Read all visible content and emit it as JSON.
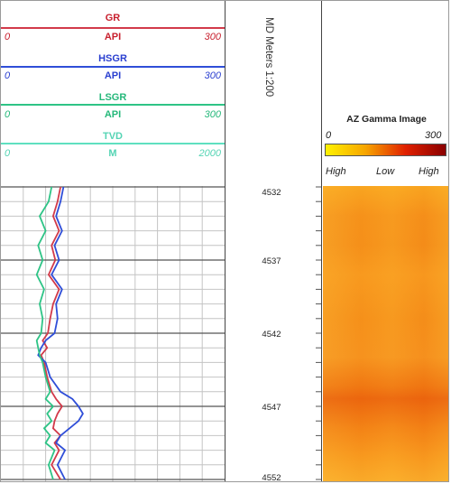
{
  "header": {
    "curves": [
      {
        "name": "GR",
        "unit": "API",
        "min": "0",
        "max": "300",
        "color": "#d23a4a",
        "text_color": "#c8202e"
      },
      {
        "name": "HSGR",
        "unit": "API",
        "min": "0",
        "max": "300",
        "color": "#2f4ed8",
        "text_color": "#2a3fd0"
      },
      {
        "name": "LSGR",
        "unit": "API",
        "min": "0",
        "max": "300",
        "color": "#2ec486",
        "text_color": "#25b87a"
      },
      {
        "name": "TVD",
        "unit": "M",
        "min": "0",
        "max": "2000",
        "color": "#5fe0c0",
        "text_color": "#55d4b4"
      }
    ]
  },
  "depth_track": {
    "title": "MD Meters 1:200"
  },
  "image_track": {
    "title": "AZ Gamma Image",
    "scale_min": "0",
    "scale_max": "300",
    "labels": {
      "left": "High",
      "center": "Low",
      "right": "High"
    }
  },
  "chart_data": {
    "type": "line",
    "y_axis": {
      "label": "MD Meters 1:200",
      "range": [
        4532,
        4552
      ],
      "ticks": [
        4532,
        4537,
        4542,
        4547,
        4552
      ],
      "tick_labels": [
        "4532",
        "4537",
        "4542",
        "4547",
        "4552"
      ],
      "reversed": true
    },
    "x_axis": {
      "range": [
        0,
        300
      ],
      "unit": "API"
    },
    "grid": true,
    "series": [
      {
        "name": "GR",
        "color": "#d23a4a",
        "depth": [
          4532,
          4533,
          4534,
          4535,
          4536,
          4537,
          4538,
          4539,
          4540,
          4541,
          4542,
          4542.5,
          4543,
          4543.5,
          4544,
          4545,
          4546,
          4546.5,
          4547,
          4547.5,
          4548,
          4548.5,
          4549,
          4549.5,
          4550,
          4551,
          4552
        ],
        "values": [
          80,
          76,
          70,
          78,
          68,
          73,
          64,
          78,
          70,
          66,
          63,
          56,
          62,
          54,
          58,
          62,
          68,
          74,
          82,
          76,
          72,
          70,
          80,
          72,
          78,
          68,
          80
        ]
      },
      {
        "name": "HSGR",
        "color": "#2f4ed8",
        "depth": [
          4532,
          4533,
          4534,
          4535,
          4536,
          4537,
          4538,
          4539,
          4540,
          4541,
          4542,
          4542.5,
          4543,
          4543.5,
          4544,
          4545,
          4546,
          4546.5,
          4547,
          4547.5,
          4548,
          4548.5,
          4549,
          4549.5,
          4550,
          4551,
          4552
        ],
        "values": [
          84,
          80,
          74,
          82,
          72,
          78,
          68,
          82,
          74,
          76,
          72,
          60,
          54,
          50,
          60,
          66,
          80,
          96,
          104,
          110,
          104,
          92,
          80,
          74,
          86,
          76,
          86
        ]
      },
      {
        "name": "LSGR",
        "color": "#2ec486",
        "depth": [
          4532,
          4533,
          4534,
          4535,
          4536,
          4537,
          4538,
          4539,
          4540,
          4541,
          4542,
          4542.5,
          4543,
          4543.5,
          4544,
          4545,
          4546,
          4546.5,
          4547,
          4547.5,
          4548,
          4548.5,
          4549,
          4549.5,
          4550,
          4551,
          4552
        ],
        "values": [
          68,
          64,
          52,
          60,
          50,
          56,
          48,
          58,
          52,
          56,
          54,
          48,
          50,
          52,
          56,
          60,
          66,
          60,
          70,
          62,
          68,
          58,
          66,
          60,
          72,
          64,
          70
        ]
      }
    ]
  }
}
